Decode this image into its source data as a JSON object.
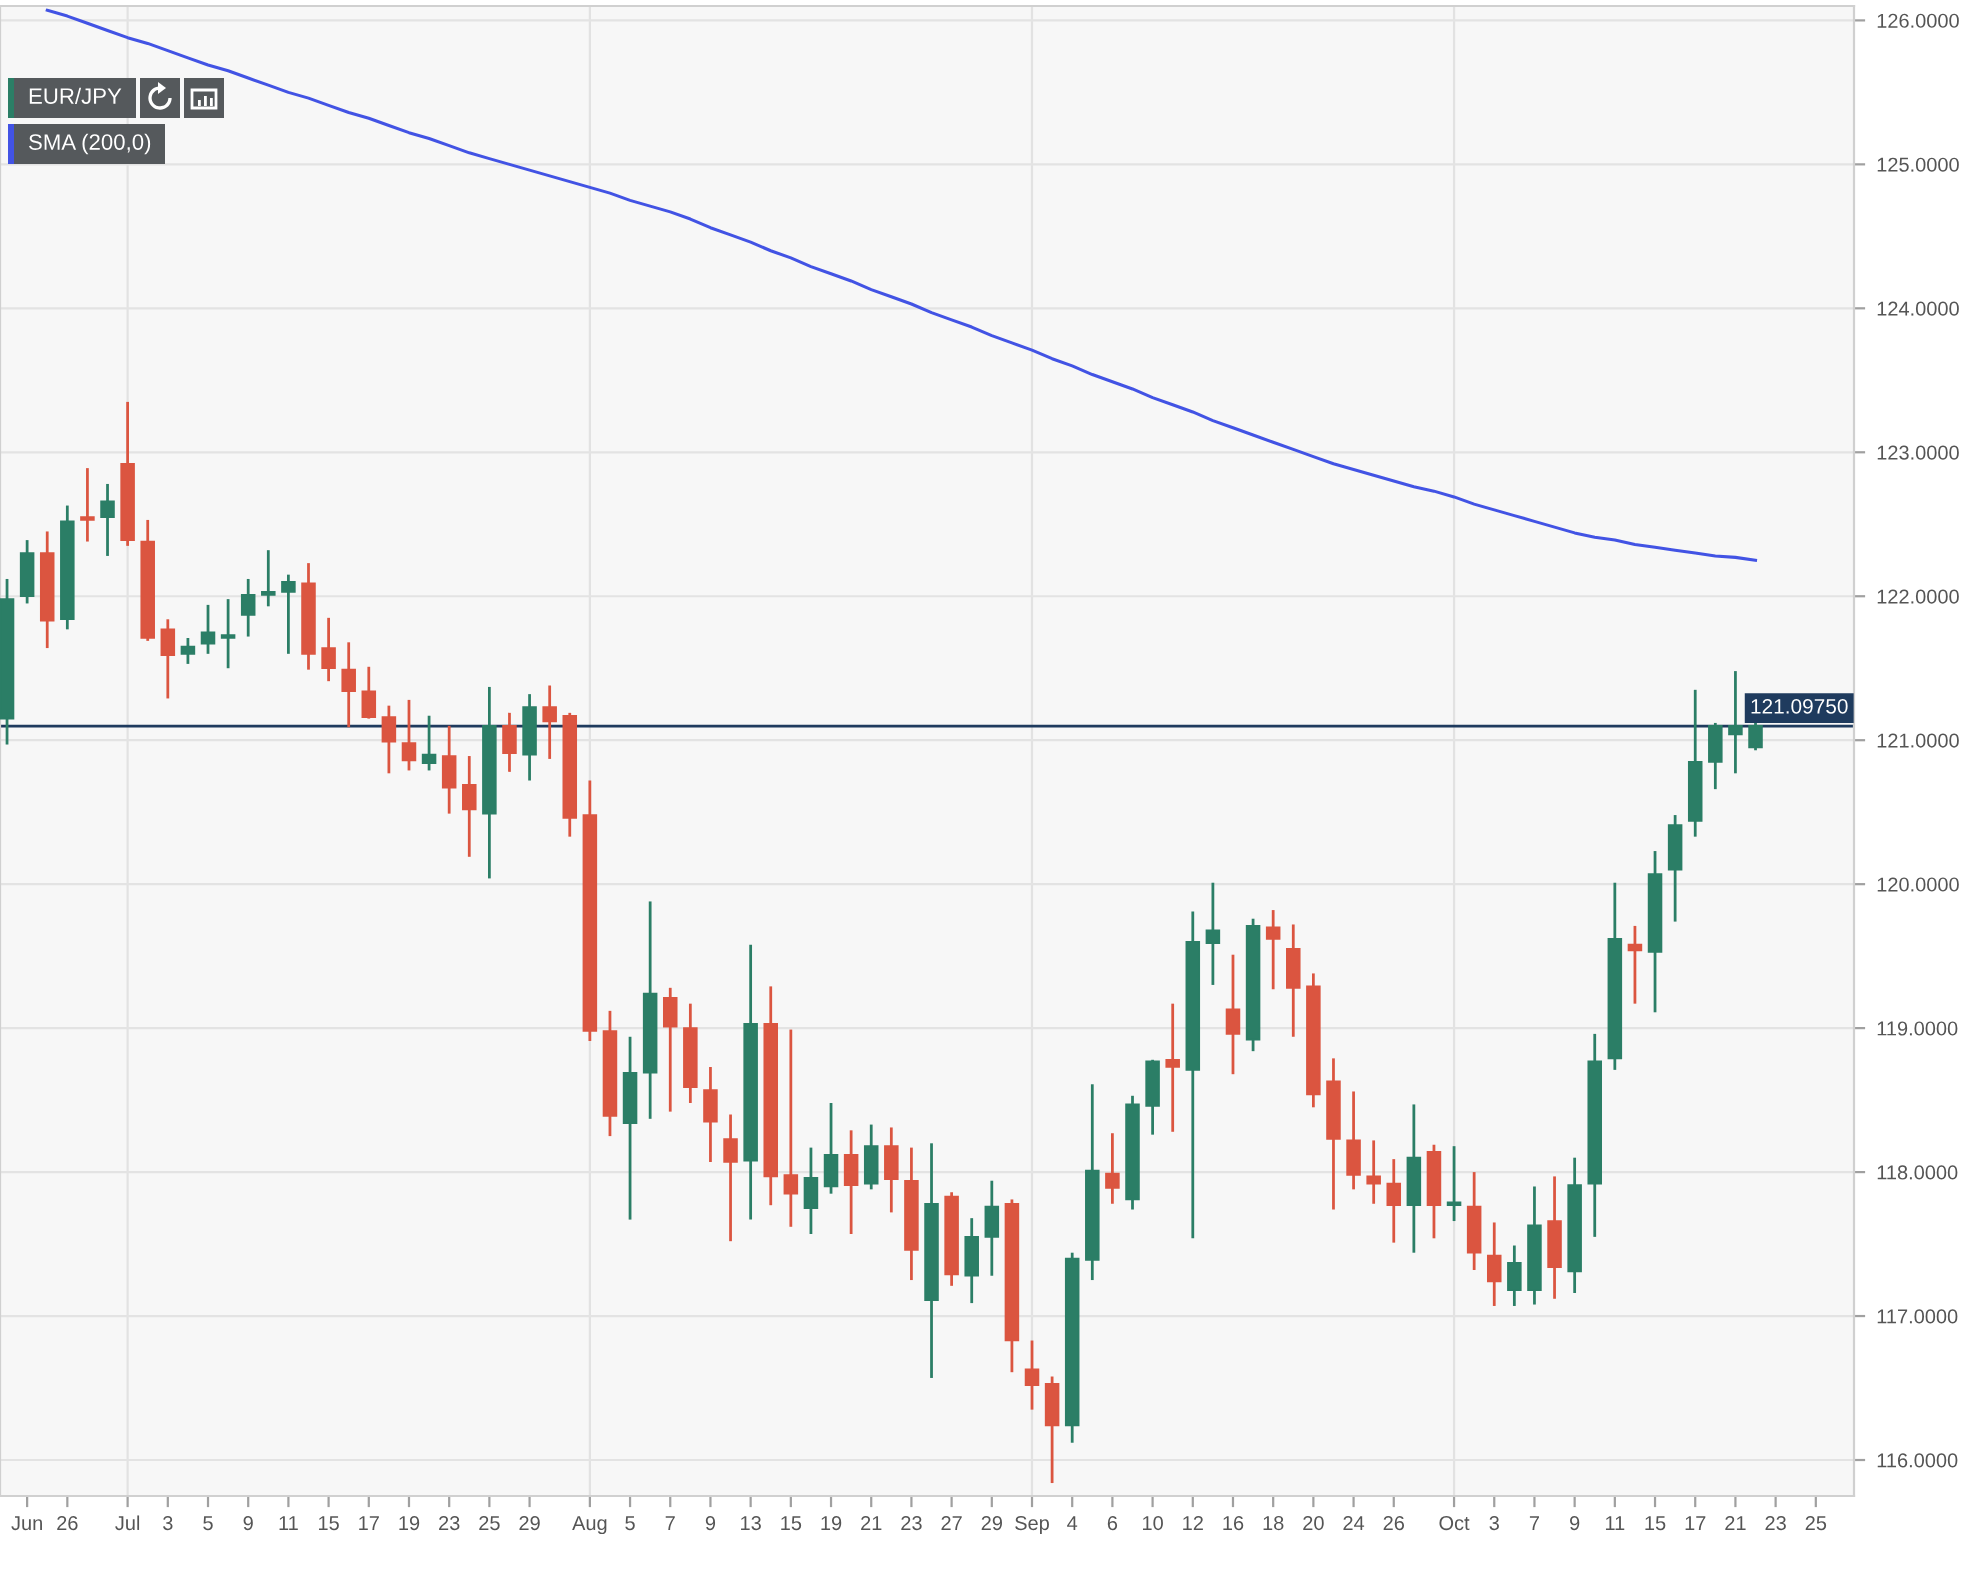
{
  "chart_data": {
    "type": "candlestick",
    "categories": [
      null,
      "Jun",
      null,
      "26",
      null,
      null,
      "Jul",
      null,
      "3",
      null,
      "5",
      null,
      "9",
      null,
      "11",
      null,
      "15",
      null,
      "17",
      null,
      "19",
      null,
      "23",
      null,
      "25",
      null,
      "29",
      null,
      null,
      "Aug",
      null,
      "5",
      null,
      "7",
      null,
      "9",
      null,
      "13",
      null,
      "15",
      null,
      "19",
      null,
      "21",
      null,
      "23",
      null,
      "27",
      null,
      "29",
      null,
      "Sep",
      null,
      "4",
      null,
      "6",
      null,
      "10",
      null,
      "12",
      null,
      "16",
      null,
      "18",
      null,
      "20",
      null,
      "24",
      null,
      "26",
      null,
      null,
      "Oct",
      null,
      "3",
      null,
      "7",
      null,
      "9",
      null,
      "11",
      null,
      "15",
      null,
      "17",
      null,
      "21",
      null,
      "23",
      null,
      "25"
    ],
    "series": [
      {
        "name": "EUR/JPY",
        "color": "#2b7e66",
        "ohlc": [
          [
            121.15,
            122.12,
            120.97,
            121.98
          ],
          [
            122.0,
            122.39,
            121.95,
            122.3
          ],
          [
            122.3,
            122.45,
            121.64,
            121.83
          ],
          [
            121.84,
            122.63,
            121.77,
            122.52
          ],
          [
            122.55,
            122.89,
            122.38,
            122.53
          ],
          [
            122.55,
            122.78,
            122.28,
            122.66
          ],
          [
            122.92,
            123.35,
            122.35,
            122.39
          ],
          [
            122.38,
            122.53,
            121.69,
            121.71
          ],
          [
            121.77,
            121.84,
            121.29,
            121.59
          ],
          [
            121.6,
            121.71,
            121.53,
            121.65
          ],
          [
            121.67,
            121.94,
            121.6,
            121.75
          ],
          [
            121.71,
            121.98,
            121.5,
            121.73
          ],
          [
            121.87,
            122.12,
            121.72,
            122.01
          ],
          [
            122.01,
            122.32,
            121.93,
            122.03
          ],
          [
            122.03,
            122.15,
            121.6,
            122.1
          ],
          [
            122.09,
            122.23,
            121.49,
            121.6
          ],
          [
            121.64,
            121.85,
            121.41,
            121.5
          ],
          [
            121.49,
            121.68,
            121.09,
            121.34
          ],
          [
            121.34,
            121.51,
            121.15,
            121.16
          ],
          [
            121.16,
            121.24,
            120.77,
            120.99
          ],
          [
            120.98,
            121.28,
            120.79,
            120.86
          ],
          [
            120.84,
            121.17,
            120.79,
            120.9
          ],
          [
            120.89,
            121.1,
            120.49,
            120.67
          ],
          [
            120.69,
            120.89,
            120.19,
            120.52
          ],
          [
            120.49,
            121.37,
            120.04,
            121.1
          ],
          [
            121.1,
            121.19,
            120.78,
            120.91
          ],
          [
            120.9,
            121.32,
            120.72,
            121.23
          ],
          [
            121.23,
            121.38,
            120.87,
            121.13
          ],
          [
            121.17,
            121.19,
            120.33,
            120.46
          ],
          [
            120.48,
            120.72,
            118.91,
            118.98
          ],
          [
            118.98,
            119.12,
            118.25,
            118.39
          ],
          [
            118.34,
            118.94,
            117.67,
            118.69
          ],
          [
            118.69,
            119.88,
            118.37,
            119.24
          ],
          [
            119.21,
            119.28,
            118.42,
            119.01
          ],
          [
            119.0,
            119.17,
            118.48,
            118.59
          ],
          [
            118.57,
            118.73,
            118.07,
            118.35
          ],
          [
            118.23,
            118.4,
            117.52,
            118.07
          ],
          [
            118.08,
            119.58,
            117.67,
            119.03
          ],
          [
            119.03,
            119.29,
            117.77,
            117.97
          ],
          [
            117.98,
            118.99,
            117.62,
            117.85
          ],
          [
            117.75,
            118.17,
            117.57,
            117.96
          ],
          [
            117.9,
            118.48,
            117.85,
            118.12
          ],
          [
            118.12,
            118.29,
            117.57,
            117.91
          ],
          [
            117.92,
            118.33,
            117.88,
            118.18
          ],
          [
            118.18,
            118.31,
            117.72,
            117.95
          ],
          [
            117.94,
            118.17,
            117.25,
            117.46
          ],
          [
            117.11,
            118.2,
            116.57,
            117.78
          ],
          [
            117.83,
            117.86,
            117.21,
            117.29
          ],
          [
            117.28,
            117.68,
            117.09,
            117.55
          ],
          [
            117.55,
            117.94,
            117.28,
            117.76
          ],
          [
            117.78,
            117.81,
            116.61,
            116.83
          ],
          [
            116.63,
            116.83,
            116.35,
            116.52
          ],
          [
            116.53,
            116.58,
            115.84,
            116.24
          ],
          [
            116.24,
            117.44,
            116.12,
            117.4
          ],
          [
            117.39,
            118.61,
            117.25,
            118.01
          ],
          [
            117.99,
            118.27,
            117.78,
            117.89
          ],
          [
            117.81,
            118.53,
            117.74,
            118.47
          ],
          [
            118.46,
            118.78,
            118.26,
            118.77
          ],
          [
            118.78,
            119.17,
            118.28,
            118.73
          ],
          [
            118.71,
            119.81,
            117.54,
            119.6
          ],
          [
            119.59,
            120.01,
            119.3,
            119.68
          ],
          [
            119.13,
            119.51,
            118.68,
            118.96
          ],
          [
            118.92,
            119.76,
            118.84,
            119.71
          ],
          [
            119.7,
            119.82,
            119.27,
            119.62
          ],
          [
            119.55,
            119.72,
            118.94,
            119.28
          ],
          [
            119.29,
            119.38,
            118.45,
            118.54
          ],
          [
            118.63,
            118.79,
            117.74,
            118.23
          ],
          [
            118.22,
            118.56,
            117.88,
            117.98
          ],
          [
            117.97,
            118.22,
            117.78,
            117.92
          ],
          [
            117.92,
            118.09,
            117.51,
            117.77
          ],
          [
            117.77,
            118.47,
            117.44,
            118.1
          ],
          [
            118.14,
            118.19,
            117.54,
            117.77
          ],
          [
            117.77,
            118.18,
            117.66,
            117.79
          ],
          [
            117.76,
            118.0,
            117.32,
            117.44
          ],
          [
            117.42,
            117.65,
            117.07,
            117.24
          ],
          [
            117.18,
            117.49,
            117.07,
            117.37
          ],
          [
            117.18,
            117.9,
            117.08,
            117.63
          ],
          [
            117.66,
            117.97,
            117.12,
            117.34
          ],
          [
            117.31,
            118.1,
            117.16,
            117.91
          ],
          [
            117.92,
            118.96,
            117.55,
            118.77
          ],
          [
            118.79,
            120.01,
            118.71,
            119.62
          ],
          [
            119.58,
            119.71,
            119.17,
            119.54
          ],
          [
            119.53,
            120.23,
            119.11,
            120.07
          ],
          [
            120.1,
            120.48,
            119.74,
            120.41
          ],
          [
            120.44,
            121.35,
            120.33,
            120.85
          ],
          [
            120.85,
            121.12,
            120.66,
            121.1
          ],
          [
            121.04,
            121.48,
            120.77,
            121.1
          ],
          [
            120.95,
            121.12,
            120.93,
            121.1
          ],
          null,
          null,
          null
        ],
        "colors": [
          "#2b7e66",
          "#2b7e66",
          "#db5540",
          "#2b7e66",
          "#db5540",
          "#2b7e66",
          "#db5540",
          "#db5540",
          "#db5540",
          "#2b7e66",
          "#2b7e66",
          "#2b7e66",
          "#2b7e66",
          "#2b7e66",
          "#2b7e66",
          "#db5540",
          "#db5540",
          "#db5540",
          "#db5540",
          "#db5540",
          "#db5540",
          "#2b7e66",
          "#db5540",
          "#db5540",
          "#2b7e66",
          "#db5540",
          "#2b7e66",
          "#db5540",
          "#db5540",
          "#db5540",
          "#db5540",
          "#2b7e66",
          "#2b7e66",
          "#db5540",
          "#db5540",
          "#db5540",
          "#db5540",
          "#2b7e66",
          "#db5540",
          "#db5540",
          "#2b7e66",
          "#2b7e66",
          "#db5540",
          "#2b7e66",
          "#db5540",
          "#db5540",
          "#2b7e66",
          "#db5540",
          "#2b7e66",
          "#2b7e66",
          "#db5540",
          "#db5540",
          "#db5540",
          "#2b7e66",
          "#2b7e66",
          "#db5540",
          "#2b7e66",
          "#2b7e66",
          "#db5540",
          "#2b7e66",
          "#2b7e66",
          "#db5540",
          "#2b7e66",
          "#db5540",
          "#db5540",
          "#db5540",
          "#db5540",
          "#db5540",
          "#db5540",
          "#db5540",
          "#2b7e66",
          "#db5540",
          "#2b7e66",
          "#db5540",
          "#db5540",
          "#2b7e66",
          "#2b7e66",
          "#db5540",
          "#2b7e66",
          "#2b7e66",
          "#2b7e66",
          "#db5540",
          "#2b7e66",
          "#2b7e66",
          "#2b7e66",
          "#2b7e66",
          "#2b7e66",
          "#2b7e66",
          null,
          null,
          null
        ]
      },
      {
        "name": "SMA (200,0)",
        "type": "line",
        "color": "#4253e4",
        "values": [
          null,
          null,
          126.07,
          126.03,
          125.98,
          125.93,
          125.88,
          125.84,
          125.79,
          125.74,
          125.69,
          125.65,
          125.6,
          125.55,
          125.5,
          125.46,
          125.41,
          125.36,
          125.32,
          125.27,
          125.22,
          125.18,
          125.13,
          125.08,
          125.04,
          125.0,
          124.96,
          124.92,
          124.88,
          124.84,
          124.8,
          124.75,
          124.71,
          124.67,
          124.62,
          124.56,
          124.51,
          124.46,
          124.4,
          124.35,
          124.29,
          124.24,
          124.19,
          124.13,
          124.08,
          124.03,
          123.97,
          123.92,
          123.87,
          123.81,
          123.76,
          123.71,
          123.65,
          123.6,
          123.54,
          123.49,
          123.44,
          123.38,
          123.33,
          123.28,
          123.22,
          123.17,
          123.12,
          123.07,
          123.02,
          122.97,
          122.92,
          122.88,
          122.84,
          122.8,
          122.76,
          122.73,
          122.69,
          122.64,
          122.6,
          122.56,
          122.52,
          122.48,
          122.44,
          122.41,
          122.39,
          122.36,
          122.34,
          122.32,
          122.3,
          122.28,
          122.27,
          122.25,
          null,
          null,
          null
        ]
      }
    ],
    "ylim": [
      115.75,
      126.1
    ],
    "yticks": [
      {
        "value": 116,
        "label": "116.0000"
      },
      {
        "value": 117,
        "label": "117.0000"
      },
      {
        "value": 118,
        "label": "118.0000"
      },
      {
        "value": 119,
        "label": "119.0000"
      },
      {
        "value": 120,
        "label": "120.0000"
      },
      {
        "value": 121,
        "label": "121.0000"
      },
      {
        "value": 122,
        "label": "122.0000"
      },
      {
        "value": 123,
        "label": "123.0000"
      },
      {
        "value": 124,
        "label": "124.0000"
      },
      {
        "value": 125,
        "label": "125.0000"
      },
      {
        "value": 126,
        "label": "126.0000"
      }
    ],
    "ref_lines": [
      {
        "axis": "y",
        "value": 121.0975,
        "label": "121.09750",
        "color": "#1f3b5e"
      },
      {
        "axis": "x",
        "value": "Jul",
        "color": "#e2e2e2"
      },
      {
        "axis": "x",
        "value": "Aug",
        "color": "#e2e2e2"
      },
      {
        "axis": "x",
        "value": "Sep",
        "color": "#e2e2e2"
      },
      {
        "axis": "x",
        "value": "Oct",
        "color": "#e2e2e2"
      }
    ],
    "grid": "y",
    "legend": "top left"
  }
}
